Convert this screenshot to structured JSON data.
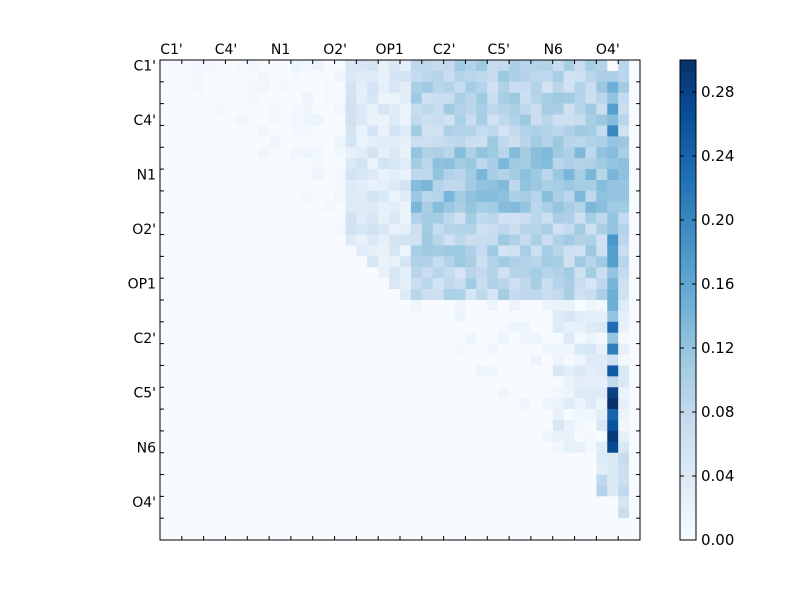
{
  "chart_data": {
    "type": "heatmap",
    "title": "",
    "xlabel": "",
    "ylabel": "",
    "grid": false,
    "colormap": [
      "#f7fbff",
      "#deebf7",
      "#c6dbef",
      "#9ecae1",
      "#6baed6",
      "#4292c6",
      "#2171b5",
      "#08519c",
      "#08306b"
    ],
    "n_cells": 44,
    "x_tick_labels": [
      "C1'",
      "C4'",
      "N1",
      "O2'",
      "OP1",
      "C2'",
      "C5'",
      "N6",
      "O4'"
    ],
    "y_tick_labels": [
      "C1'",
      "C4'",
      "N1",
      "O2'",
      "OP1",
      "C2'",
      "C5'",
      "N6",
      "O4'"
    ],
    "colorbar": {
      "vmin": 0.0,
      "vmax": 0.3,
      "tick_values": [
        0.0,
        0.04,
        0.08,
        0.12,
        0.16,
        0.2,
        0.24,
        0.28
      ],
      "tick_labels": [
        "0.00",
        "0.04",
        "0.08",
        "0.12",
        "0.16",
        "0.20",
        "0.24",
        "0.28"
      ]
    },
    "highlight_column_values": [
      0.0,
      0.1,
      0.15,
      0.12,
      0.17,
      0.13,
      0.2,
      0.12,
      0.13,
      0.12,
      0.14,
      0.12,
      0.12,
      0.11,
      0.12,
      0.12,
      0.18,
      0.17,
      0.17,
      0.12,
      0.14,
      0.15,
      0.15,
      0.12,
      0.23,
      0.12,
      0.21,
      0.06,
      0.25,
      0.08,
      0.28,
      0.3,
      0.24,
      0.26,
      0.29,
      0.27,
      0.04,
      0.04,
      0.04,
      0.04,
      0.0,
      0.0,
      0.0,
      0.0
    ]
  }
}
